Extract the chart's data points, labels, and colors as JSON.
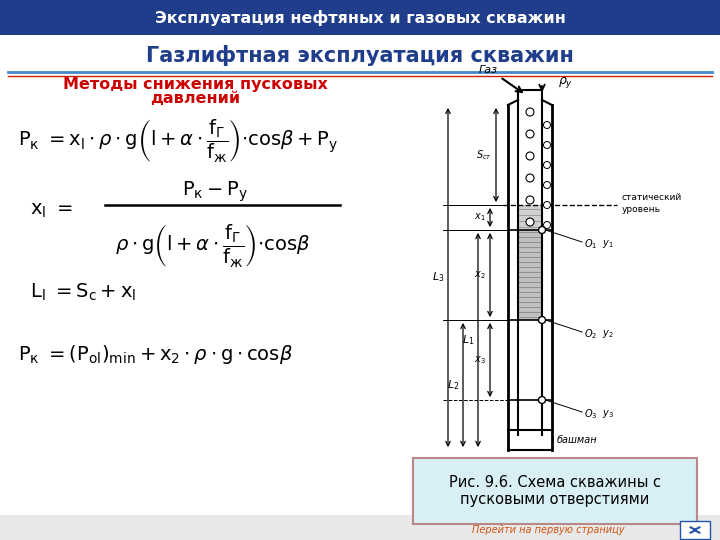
{
  "header_text": "Эксплуатация нефтяных и газовых скважин",
  "header_bg": "#1f3d8a",
  "header_text_color": "#ffffff",
  "title_text": "Газлифтная эксплуатация скважин",
  "title_color": "#1f3d8a",
  "subtitle_line1": "Методы снижения пусковых",
  "subtitle_line2": "давлений",
  "subtitle_color": "#cc0000",
  "bg_color": "#ffffff",
  "outer_bg": "#e8e8e8",
  "sep_color1": "#4488cc",
  "sep_color2": "#cc2200",
  "caption_text": "Рис. 9.6. Схема скважины с\nпусковыми отверстиями",
  "caption_bg": "#d8eff5",
  "caption_border": "#bb8888",
  "nav_text": "Перейти на первую страницу",
  "nav_color": "#cc5511"
}
